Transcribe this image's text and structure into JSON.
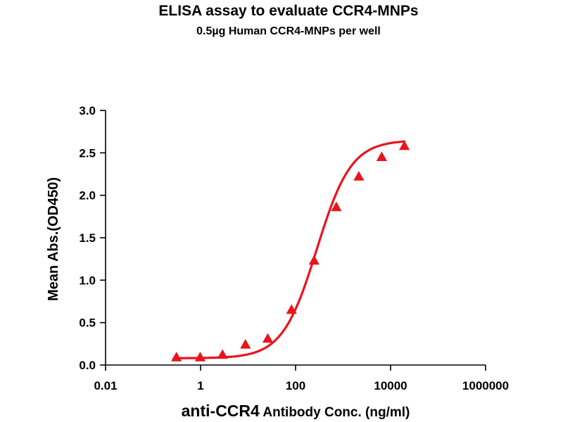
{
  "chart_data": {
    "type": "scatter",
    "title": "ELISA assay to evaluate CCR4-MNPs",
    "subtitle": "0.5µg Human CCR4-MNPs per well",
    "xlabel": {
      "main": "anti-CCR4",
      "rest": " Antibody Conc. (ng/ml)"
    },
    "ylabel": "Mean Abs.(OD450)",
    "x_scale": "log",
    "xlim": [
      0.01,
      1000000
    ],
    "ylim": [
      0,
      3.0
    ],
    "x_ticks": [
      {
        "value": 0.01,
        "label": "0.01"
      },
      {
        "value": 1,
        "label": "1"
      },
      {
        "value": 100,
        "label": "100"
      },
      {
        "value": 10000,
        "label": "10000"
      },
      {
        "value": 1000000,
        "label": "1000000"
      }
    ],
    "y_ticks": [
      {
        "value": 0,
        "label": "0.0"
      },
      {
        "value": 0.5,
        "label": "0.5"
      },
      {
        "value": 1.0,
        "label": "1.0"
      },
      {
        "value": 1.5,
        "label": "1.5"
      },
      {
        "value": 2.0,
        "label": "2.0"
      },
      {
        "value": 2.5,
        "label": "2.5"
      },
      {
        "value": 3.0,
        "label": "3.0"
      }
    ],
    "grid": false,
    "marker": "triangle",
    "color": "#e8141c",
    "series": [
      {
        "points": [
          {
            "x": 0.31,
            "y": 0.09
          },
          {
            "x": 0.98,
            "y": 0.09
          },
          {
            "x": 2.9,
            "y": 0.12
          },
          {
            "x": 8.8,
            "y": 0.24
          },
          {
            "x": 26,
            "y": 0.31
          },
          {
            "x": 82,
            "y": 0.65
          },
          {
            "x": 245,
            "y": 1.23
          },
          {
            "x": 720,
            "y": 1.86
          },
          {
            "x": 2150,
            "y": 2.22
          },
          {
            "x": 6500,
            "y": 2.45
          },
          {
            "x": 19500,
            "y": 2.58
          }
        ]
      }
    ],
    "fit_curve": {
      "model": "4PL",
      "bottom": 0.08,
      "top": 2.65,
      "ec50": 280,
      "hill": 1.2,
      "x_range": [
        0.31,
        19500
      ]
    }
  }
}
